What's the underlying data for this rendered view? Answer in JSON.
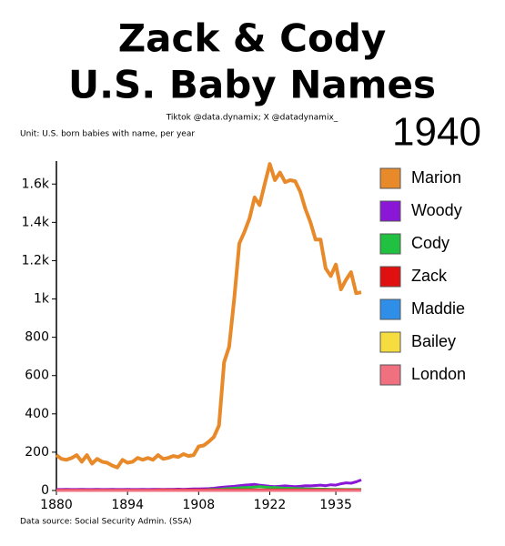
{
  "chart_data": {
    "type": "line",
    "title": "Zack & Cody",
    "subtitle": "U.S. Baby Names",
    "credit": "Tiktok @data.dynamix; X @datadynamix_",
    "annotation": "1940",
    "unit_label": "Unit: U.S. born babies with name, per year",
    "source": "Data source: Social Security Admin. (SSA)",
    "x": [
      1880,
      1881,
      1882,
      1883,
      1884,
      1885,
      1886,
      1887,
      1888,
      1889,
      1890,
      1891,
      1892,
      1893,
      1894,
      1895,
      1896,
      1897,
      1898,
      1899,
      1900,
      1901,
      1902,
      1903,
      1904,
      1905,
      1906,
      1907,
      1908,
      1909,
      1910,
      1911,
      1912,
      1913,
      1914,
      1915,
      1916,
      1917,
      1918,
      1919,
      1920,
      1921,
      1922,
      1923,
      1924,
      1925,
      1926,
      1927,
      1928,
      1929,
      1930,
      1931,
      1932,
      1933,
      1934,
      1935,
      1936,
      1937,
      1938,
      1939,
      1940
    ],
    "series": [
      {
        "name": "Marion",
        "color": "#e8892a",
        "values": [
          185,
          165,
          160,
          170,
          185,
          150,
          185,
          140,
          165,
          150,
          145,
          130,
          120,
          160,
          145,
          150,
          170,
          160,
          170,
          160,
          185,
          165,
          170,
          180,
          175,
          190,
          180,
          185,
          230,
          235,
          255,
          280,
          340,
          670,
          750,
          1000,
          1290,
          1350,
          1420,
          1530,
          1490,
          1600,
          1705,
          1620,
          1660,
          1610,
          1620,
          1615,
          1560,
          1470,
          1400,
          1310,
          1310,
          1160,
          1120,
          1180,
          1050,
          1100,
          1140,
          1030,
          1035
        ]
      },
      {
        "name": "Woody",
        "color": "#8a17d6",
        "values": [
          5,
          5,
          6,
          5,
          5,
          6,
          5,
          5,
          6,
          5,
          5,
          6,
          5,
          5,
          6,
          5,
          5,
          6,
          5,
          6,
          6,
          5,
          6,
          6,
          7,
          6,
          7,
          8,
          8,
          9,
          10,
          12,
          15,
          18,
          20,
          22,
          25,
          28,
          30,
          32,
          28,
          25,
          22,
          20,
          22,
          24,
          22,
          20,
          22,
          25,
          24,
          26,
          28,
          25,
          30,
          28,
          35,
          40,
          38,
          45,
          55
        ]
      },
      {
        "name": "Cody",
        "color": "#20c040",
        "values": [
          0,
          0,
          0,
          0,
          0,
          0,
          0,
          0,
          0,
          0,
          0,
          0,
          0,
          0,
          0,
          0,
          0,
          0,
          0,
          0,
          0,
          0,
          0,
          0,
          0,
          0,
          0,
          0,
          0,
          0,
          5,
          5,
          6,
          8,
          10,
          12,
          14,
          15,
          16,
          18,
          20,
          18,
          16,
          15,
          14,
          12,
          12,
          10,
          10,
          9,
          8,
          8,
          7,
          7,
          6,
          6,
          6,
          5,
          5,
          5,
          5
        ]
      },
      {
        "name": "Zack",
        "color": "#e01010",
        "values": [
          2,
          2,
          2,
          2,
          2,
          2,
          2,
          2,
          2,
          2,
          2,
          2,
          2,
          2,
          2,
          2,
          2,
          2,
          2,
          2,
          3,
          3,
          3,
          3,
          3,
          3,
          3,
          3,
          3,
          3,
          3,
          3,
          3,
          3,
          3,
          3,
          3,
          3,
          3,
          3,
          3,
          3,
          3,
          3,
          3,
          3,
          3,
          3,
          3,
          3,
          3,
          3,
          3,
          3,
          3,
          3,
          3,
          3,
          3,
          3,
          3
        ]
      },
      {
        "name": "Maddie",
        "color": "#2e8ee8",
        "values": [
          0,
          0,
          0,
          0,
          0,
          0,
          0,
          0,
          0,
          0,
          0,
          0,
          0,
          0,
          0,
          0,
          0,
          0,
          0,
          0,
          0,
          0,
          0,
          0,
          0,
          0,
          0,
          0,
          0,
          0,
          0,
          0,
          0,
          0,
          0,
          0,
          0,
          0,
          0,
          0,
          0,
          0,
          0,
          0,
          0,
          0,
          0,
          0,
          0,
          0,
          0,
          0,
          0,
          0,
          0,
          0,
          0,
          0,
          0,
          0,
          0
        ]
      },
      {
        "name": "Bailey",
        "color": "#f5dd40",
        "values": [
          0,
          0,
          0,
          0,
          0,
          0,
          0,
          0,
          0,
          0,
          0,
          0,
          0,
          0,
          0,
          0,
          0,
          0,
          0,
          0,
          0,
          0,
          0,
          0,
          0,
          0,
          0,
          0,
          0,
          0,
          0,
          0,
          0,
          0,
          0,
          0,
          0,
          0,
          0,
          0,
          0,
          0,
          0,
          0,
          0,
          0,
          0,
          0,
          0,
          0,
          0,
          0,
          0,
          0,
          0,
          0,
          0,
          0,
          0,
          0,
          0
        ]
      },
      {
        "name": "London",
        "color": "#f07080",
        "values": [
          0,
          0,
          0,
          0,
          0,
          0,
          0,
          0,
          0,
          0,
          0,
          0,
          0,
          0,
          0,
          0,
          0,
          0,
          0,
          0,
          0,
          0,
          0,
          0,
          0,
          0,
          0,
          0,
          0,
          0,
          0,
          0,
          0,
          0,
          0,
          0,
          0,
          0,
          0,
          0,
          0,
          0,
          0,
          0,
          0,
          0,
          0,
          0,
          0,
          0,
          0,
          0,
          0,
          0,
          0,
          0,
          0,
          0,
          0,
          0,
          0
        ]
      }
    ],
    "xlim": [
      1880,
      1940
    ],
    "xticks": [
      1880,
      1894,
      1908,
      1922,
      1935
    ],
    "ylim": [
      0,
      1720
    ],
    "yticks": [
      0,
      200,
      400,
      600,
      800,
      {
        "value": 1000,
        "label": "1k"
      },
      {
        "value": 1200,
        "label": "1.2k"
      },
      {
        "value": 1400,
        "label": "1.4k"
      },
      {
        "value": 1600,
        "label": "1.6k"
      }
    ],
    "grid": false,
    "legend": "right"
  }
}
